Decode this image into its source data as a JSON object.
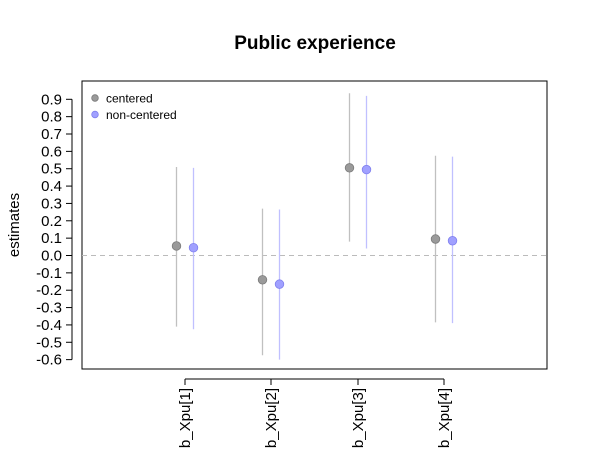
{
  "chart_data": {
    "type": "scatter",
    "title": "Public experience",
    "xlabel": "",
    "ylabel": "estimates",
    "categories": [
      "b_Xpu[1]",
      "b_Xpu[2]",
      "b_Xpu[3]",
      "b_Xpu[4]"
    ],
    "yticks": [
      "-0.6",
      "-0.5",
      "-0.4",
      "-0.3",
      "-0.2",
      "-0.1",
      "0.0",
      "0.1",
      "0.2",
      "0.3",
      "0.4",
      "0.5",
      "0.6",
      "0.7",
      "0.8",
      "0.9"
    ],
    "ylim": [
      -0.65,
      1.0
    ],
    "reference_line": 0.0,
    "legend_position": "top-left",
    "grid": false,
    "series": [
      {
        "name": "centered",
        "color": "#8c8c8c",
        "estimates": [
          0.055,
          -0.14,
          0.505,
          0.095
        ],
        "lower": [
          -0.41,
          -0.575,
          0.08,
          -0.385
        ],
        "upper": [
          0.51,
          0.27,
          0.935,
          0.575
        ]
      },
      {
        "name": "non-centered",
        "color": "#9999ff",
        "estimates": [
          0.045,
          -0.165,
          0.495,
          0.085
        ],
        "lower": [
          -0.425,
          -0.6,
          0.04,
          -0.39
        ],
        "upper": [
          0.505,
          0.265,
          0.92,
          0.57
        ]
      }
    ]
  }
}
